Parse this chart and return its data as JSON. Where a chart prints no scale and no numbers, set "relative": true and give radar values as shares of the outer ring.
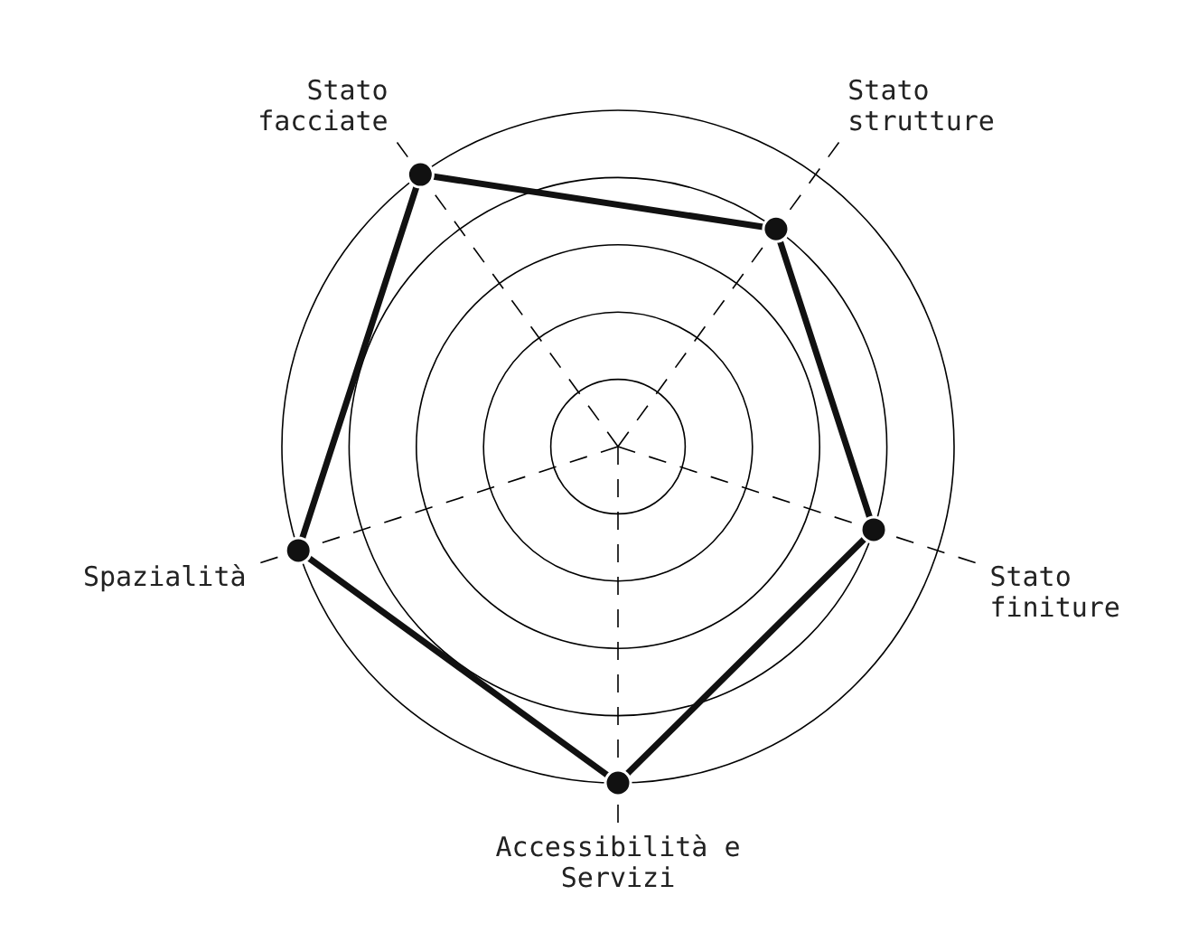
{
  "chart_data": {
    "type": "radar",
    "relative": true,
    "categories": [
      "Stato\nstrutture",
      "Stato\nfiniture",
      "Accessibilità e\nServizi",
      "Spazialità",
      "Stato\nfacciate"
    ],
    "series": [
      {
        "color": "#111111",
        "values": [
          0.8,
          0.8,
          1,
          1,
          1
        ]
      }
    ],
    "marker": "circle",
    "grid": true
  }
}
